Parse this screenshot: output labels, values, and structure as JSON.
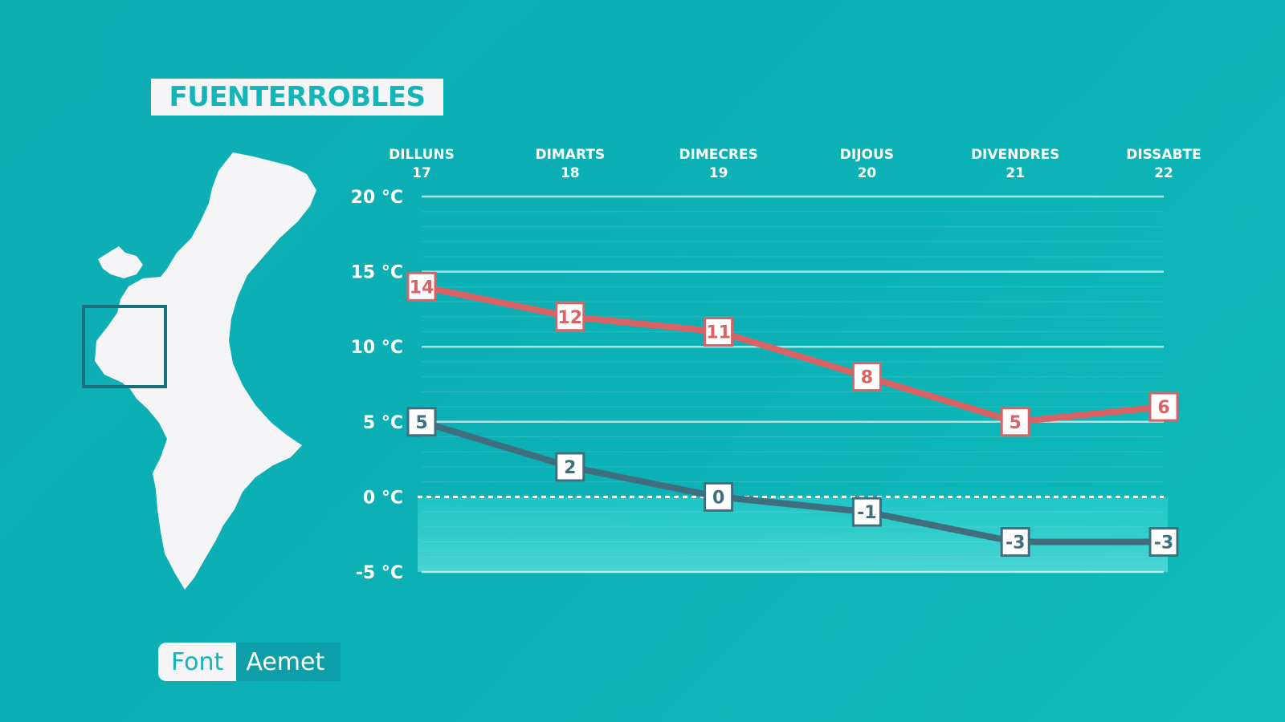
{
  "title": "FUENTERROBLES",
  "source": {
    "label": "Font",
    "value": "Aemet"
  },
  "map": {
    "icon": "region-map-icon",
    "highlight_icon": "location-frame-icon"
  },
  "colors": {
    "background": "#0eaeb3",
    "max_series": "#d96264",
    "min_series": "#3f6f7f",
    "label_bg": "#ffffff"
  },
  "chart_data": {
    "type": "line",
    "categories": [
      {
        "day": "DILLUNS",
        "date": "17"
      },
      {
        "day": "DIMARTS",
        "date": "18"
      },
      {
        "day": "DIMECRES",
        "date": "19"
      },
      {
        "day": "DIJOUS",
        "date": "20"
      },
      {
        "day": "DIVENDRES",
        "date": "21"
      },
      {
        "day": "DISSABTE",
        "date": "22"
      }
    ],
    "y_ticks": [
      {
        "value": 20,
        "label": "20 °C"
      },
      {
        "value": 15,
        "label": "15 °C"
      },
      {
        "value": 10,
        "label": "10 °C"
      },
      {
        "value": 5,
        "label": "5 °C"
      },
      {
        "value": 0,
        "label": "0 °C"
      },
      {
        "value": -5,
        "label": "-5 °C"
      }
    ],
    "ylim": [
      -5,
      20
    ],
    "grid": true,
    "series": [
      {
        "key": "max",
        "values": [
          14,
          12,
          11,
          8,
          5,
          6
        ],
        "labels": [
          "14",
          "12",
          "11",
          "8",
          "5",
          "6"
        ]
      },
      {
        "key": "min",
        "values": [
          5,
          2,
          0,
          -1,
          -3,
          -3
        ],
        "labels": [
          "5",
          "2",
          "0",
          "-1",
          "-3",
          "-3"
        ]
      }
    ]
  }
}
